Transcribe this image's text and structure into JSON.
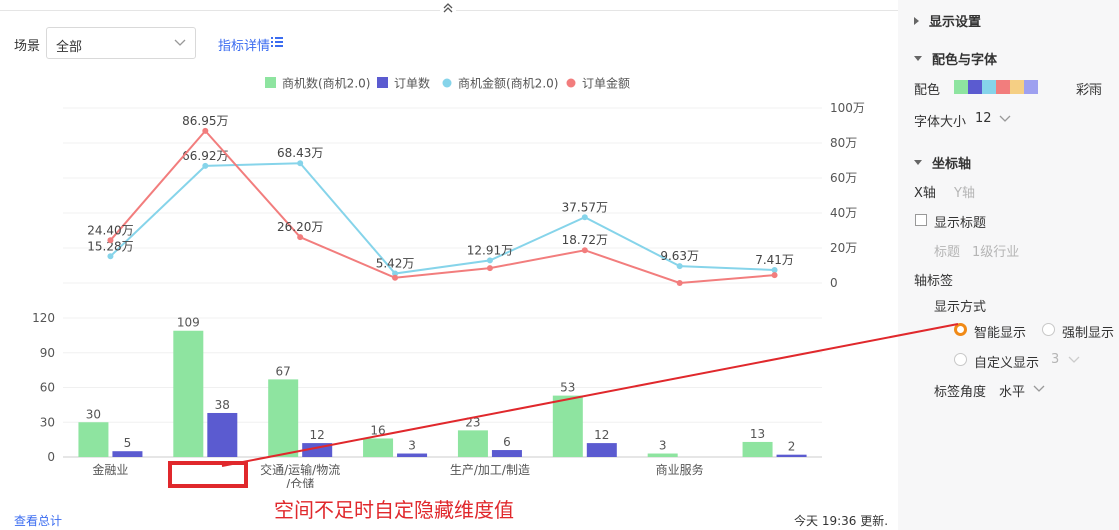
{
  "toolbar": {
    "scene_label": "场景",
    "scene_value": "全部",
    "detail_link": "指标详情"
  },
  "footer": {
    "summary_link": "查看总计",
    "update_text": "今天 19:36 更新."
  },
  "annotation": {
    "text": "空间不足时自定隐藏维度值",
    "color": "#e0282c"
  },
  "panel": {
    "display_settings": "显示设置",
    "color_font": "配色与字体",
    "color_label": "配色",
    "palette_name": "彩雨",
    "palette_colors": [
      "#8ee4a0",
      "#5b5bd0",
      "#86d4ea",
      "#f27d7d",
      "#f5cf84",
      "#9ea0f0"
    ],
    "font_size_label": "字体大小",
    "font_size_value": "12",
    "axis_section": "坐标轴",
    "x_axis_tab": "X轴",
    "y_axis_tab": "Y轴",
    "show_title_label": "显示标题",
    "title_label": "标题",
    "title_value": "1级行业",
    "axis_label_section": "轴标签",
    "display_mode_label": "显示方式",
    "mode_smart": "智能显示",
    "mode_force": "强制显示",
    "mode_custom": "自定义显示",
    "custom_value": "3",
    "label_angle_label": "标签角度",
    "label_angle_value": "水平"
  },
  "chart_data": {
    "type": "bar",
    "categories": [
      "金融业",
      "",
      "交通/运输/物流/仓储",
      "",
      "生产/加工/制造",
      "",
      "商业服务",
      ""
    ],
    "category_label_lines": [
      [
        "金融业"
      ],
      [],
      [
        "交通/运输/物流",
        "/仓储"
      ],
      [],
      [
        "生产/加工/制造"
      ],
      [],
      [
        "商业服务"
      ],
      []
    ],
    "legend": [
      "商机数(商机2.0)",
      "订单数",
      "商机金额(商机2.0)",
      "订单金额"
    ],
    "colors": {
      "bar1": "#8ee4a0",
      "bar2": "#5b5bd0",
      "line1": "#86d4ea",
      "line2": "#f27d7d"
    },
    "bar_series": [
      {
        "name": "商机数(商机2.0)",
        "values": [
          30,
          109,
          67,
          16,
          23,
          53,
          3,
          13
        ]
      },
      {
        "name": "订单数",
        "values": [
          5,
          38,
          12,
          3,
          6,
          12,
          null,
          2
        ]
      }
    ],
    "line_series": [
      {
        "name": "商机金额(商机2.0)",
        "values": [
          15.28,
          66.92,
          68.43,
          5.42,
          12.91,
          37.57,
          9.63,
          7.41
        ],
        "labels": [
          "15.28万",
          "66.92万",
          "68.43万",
          "5.42万",
          "12.91万",
          "37.57万",
          "9.63万",
          "7.41万"
        ]
      },
      {
        "name": "订单金额",
        "values": [
          24.4,
          86.95,
          26.2,
          3,
          8.5,
          18.72,
          0,
          4.5
        ],
        "labels": [
          "24.40万",
          "86.95万",
          "26.20万",
          "",
          "",
          "18.72万",
          "",
          ""
        ]
      }
    ],
    "bar_yticks": [
      "0",
      "30",
      "60",
      "90",
      "120"
    ],
    "bar_ylim": [
      0,
      120
    ],
    "line_yticks": [
      "0",
      "20万",
      "40万",
      "60万",
      "80万",
      "100万"
    ],
    "line_ylim": [
      0,
      100
    ],
    "grid": true,
    "legend_position": "top"
  }
}
